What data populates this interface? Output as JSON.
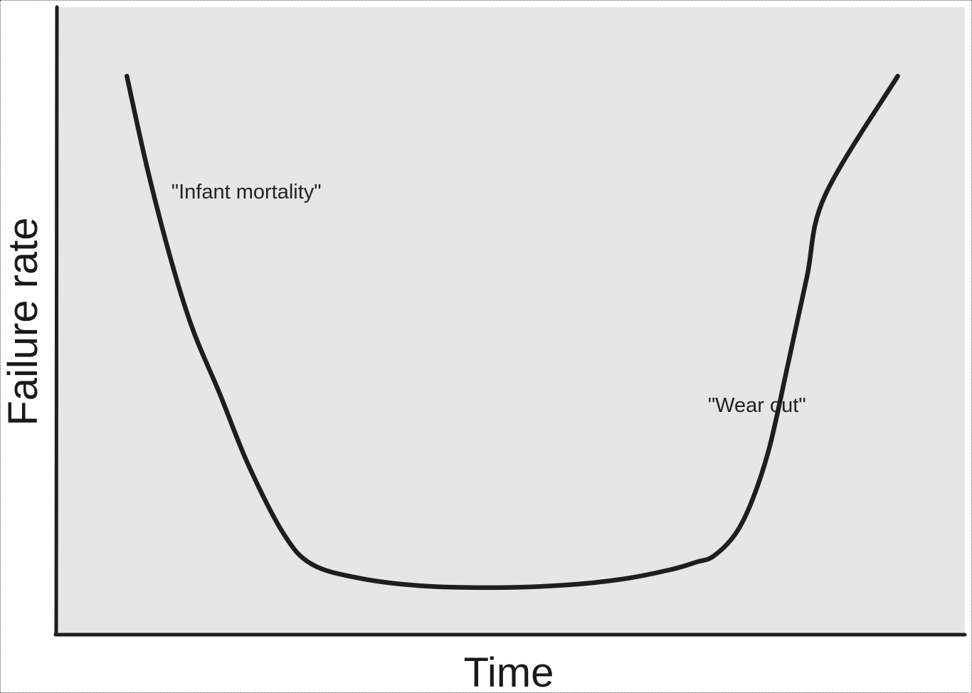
{
  "chart_data": {
    "type": "line",
    "title": "",
    "xlabel": "Time",
    "ylabel": "Failure rate",
    "xlim": [
      0,
      100
    ],
    "ylim": [
      0,
      100
    ],
    "grid": false,
    "legend": "none",
    "colors": {
      "plot_background": "#e6e6e6",
      "curve": "#1e1e1e",
      "axes": "#1e1e1e",
      "text": "#222222"
    },
    "series": [
      {
        "x": [
          7.7,
          10,
          12.7,
          15,
          17.9,
          21.1,
          25,
          28.1,
          33.3,
          40,
          48,
          56,
          62.5,
          67.7,
          70.5,
          72.3,
          74.7,
          76.6,
          78.5,
          80.5,
          82.6,
          84.6,
          92.6
        ],
        "y": [
          89,
          74,
          59,
          48.5,
          38.5,
          27,
          16,
          11.2,
          9,
          7.8,
          7.5,
          7.9,
          8.9,
          10.4,
          11.6,
          12.5,
          16,
          21.5,
          30,
          43,
          57,
          70,
          89
        ]
      }
    ],
    "annotations": [
      {
        "text": "\"Infant mortality\"",
        "x": 12.6,
        "y": 69.5
      },
      {
        "text": "\"Wear out\"",
        "x": 71.7,
        "y": 35.5
      }
    ]
  }
}
